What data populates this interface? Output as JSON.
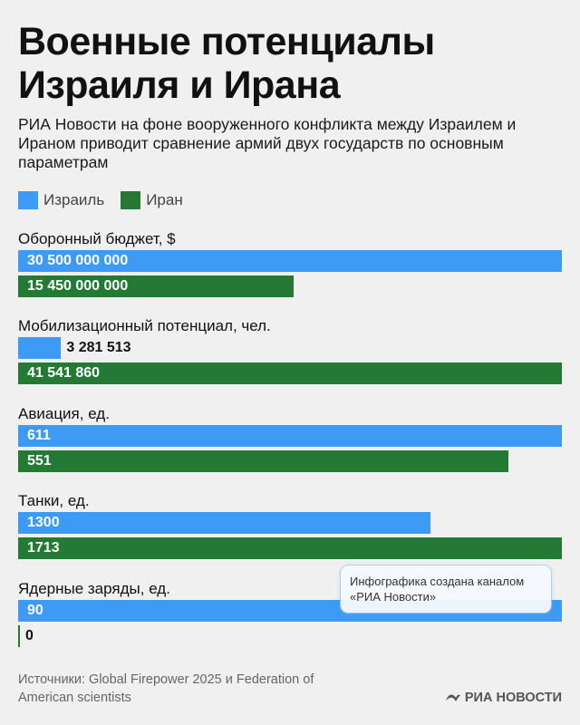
{
  "title": "Военные потенциалы Израиля и Ирана",
  "subtitle": "РИА Новости на фоне вооруженного конфликта между Израилем и Ираном приводит сравнение армий двух государств по основным параметрам",
  "legend": [
    {
      "name": "Израиль",
      "color": "#3d9af5"
    },
    {
      "name": "Иран",
      "color": "#247a34"
    }
  ],
  "chart_data": {
    "type": "bar",
    "orientation": "horizontal",
    "series": [
      {
        "name": "Израиль",
        "color": "#3d9af5"
      },
      {
        "name": "Иран",
        "color": "#247a34"
      }
    ],
    "groups": [
      {
        "category": "Оборонный бюджет, $",
        "values": [
          30500000000,
          15450000000
        ],
        "labels": [
          "30 500 000 000",
          "15 450 000 000"
        ]
      },
      {
        "category": "Мобилизационный потенциал, чел.",
        "values": [
          3281513,
          41541860
        ],
        "labels": [
          "3 281 513",
          "41 541 860"
        ]
      },
      {
        "category": "Авиация, ед.",
        "values": [
          611,
          551
        ],
        "labels": [
          "611",
          "551"
        ]
      },
      {
        "category": "Танки, ед.",
        "values": [
          1300,
          1713
        ],
        "labels": [
          "1300",
          "1713"
        ]
      },
      {
        "category": "Ядерные заряды, ед.",
        "values": [
          90,
          0
        ],
        "labels": [
          "90",
          "0"
        ]
      }
    ],
    "scale": "each group scaled to its own maximum"
  },
  "tooltip": "Инфографика создана каналом «РИА Новости»",
  "source": "Источники: Global Firepower 2025 и Federation of American scientists",
  "brand": "РИА НОВОСТИ"
}
